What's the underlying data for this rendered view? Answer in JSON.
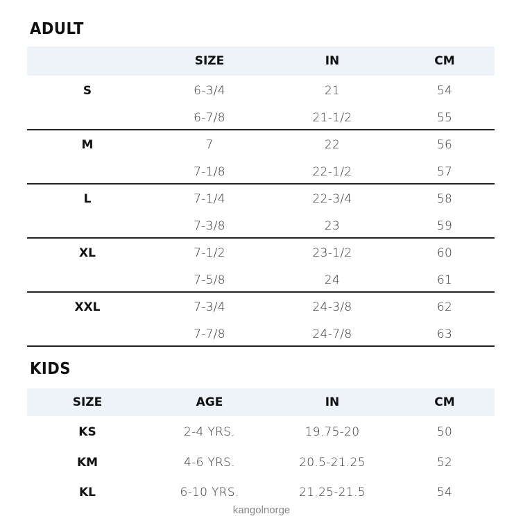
{
  "adult": {
    "title": "ADULT",
    "headers": [
      "",
      "SIZE",
      "IN",
      "CM"
    ],
    "groups": [
      {
        "label": "S",
        "rows": [
          [
            "6-3/4",
            "21",
            "54"
          ],
          [
            "6-7/8",
            "21-1/2",
            "55"
          ]
        ]
      },
      {
        "label": "M",
        "rows": [
          [
            "7",
            "22",
            "56"
          ],
          [
            "7-1/8",
            "22-1/2",
            "57"
          ]
        ]
      },
      {
        "label": "L",
        "rows": [
          [
            "7-1/4",
            "22-3/4",
            "58"
          ],
          [
            "7-3/8",
            "23",
            "59"
          ]
        ]
      },
      {
        "label": "XL",
        "rows": [
          [
            "7-1/2",
            "23-1/2",
            "60"
          ],
          [
            "7-5/8",
            "24",
            "61"
          ]
        ]
      },
      {
        "label": "XXL",
        "rows": [
          [
            "7-3/4",
            "24-3/8",
            "62"
          ],
          [
            "7-7/8",
            "24-7/8",
            "63"
          ]
        ]
      }
    ]
  },
  "kids": {
    "title": "KIDS",
    "headers": [
      "SIZE",
      "AGE",
      "IN",
      "CM"
    ],
    "rows": [
      [
        "KS",
        "2-4 YRS.",
        "19.75-20",
        "50"
      ],
      [
        "KM",
        "4-6 YRS.",
        "20.5-21.25",
        "52"
      ],
      [
        "KL",
        "6-10 YRS.",
        "21.25-21.5",
        "54"
      ]
    ]
  },
  "watermark": "kangolnorge",
  "colors": {
    "header_band": "#eef2f9",
    "rule": "#222222"
  }
}
